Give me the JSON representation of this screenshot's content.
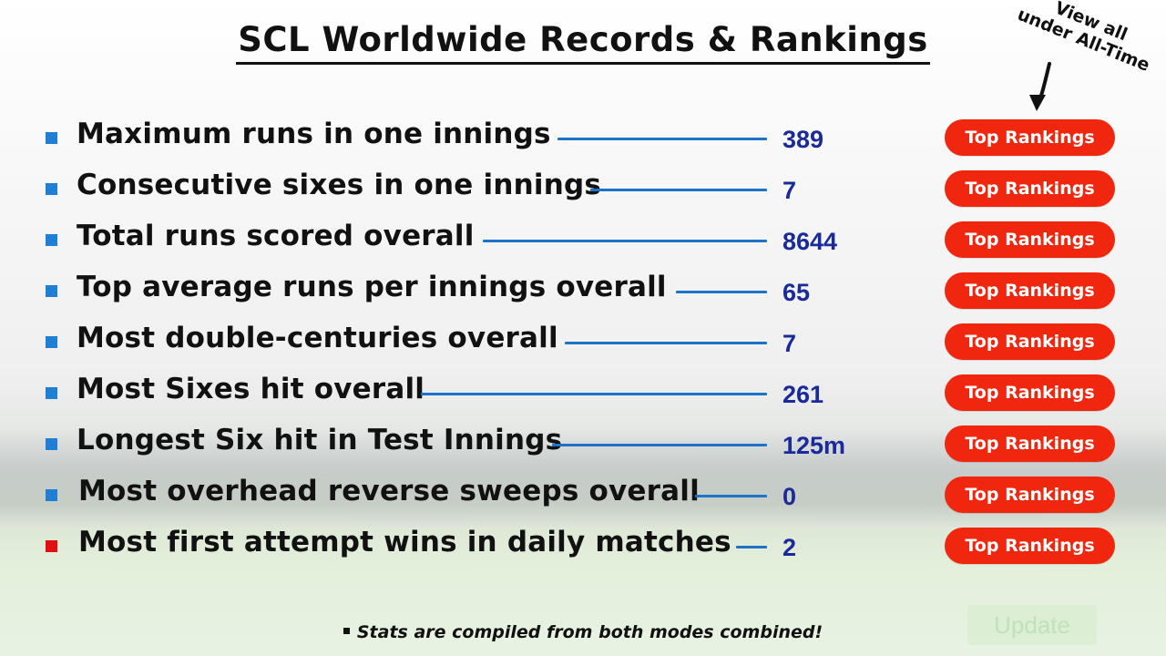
{
  "title": "SCL Worldwide Records & Rankings",
  "note": {
    "line1": "View all",
    "line2": "under All-Time"
  },
  "colors": {
    "button": "#f0260e",
    "value_text": "#1a2a9a",
    "connector_line": "#1e73c8",
    "bullet_blue": "#1e7fd4",
    "bullet_red": "#e01010"
  },
  "records": [
    {
      "label": "Maximum runs in one innings",
      "value": "389",
      "button": "Top Rankings",
      "bullet": "blue"
    },
    {
      "label": "Consecutive sixes in one innings",
      "value": "7",
      "button": "Top Rankings",
      "bullet": "blue"
    },
    {
      "label": "Total runs scored overall",
      "value": "8644",
      "button": "Top Rankings",
      "bullet": "blue"
    },
    {
      "label": "Top average runs per innings overall",
      "value": "65",
      "button": "Top Rankings",
      "bullet": "blue"
    },
    {
      "label": "Most double-centuries overall",
      "value": "7",
      "button": "Top Rankings",
      "bullet": "blue"
    },
    {
      "label": "Most Sixes hit overall",
      "value": "261",
      "button": "Top Rankings",
      "bullet": "blue"
    },
    {
      "label": "Longest Six hit in Test Innings",
      "value": "125m",
      "button": "Top Rankings",
      "bullet": "blue"
    },
    {
      "label": "Most overhead reverse sweeps overall",
      "value": "0",
      "button": "Top Rankings",
      "bullet": "blue"
    },
    {
      "label": "Most first attempt wins in daily matches",
      "value": "2",
      "button": "Top Rankings",
      "bullet": "red"
    }
  ],
  "footer": "Stats are compiled from both modes combined!",
  "update_button": "Update"
}
